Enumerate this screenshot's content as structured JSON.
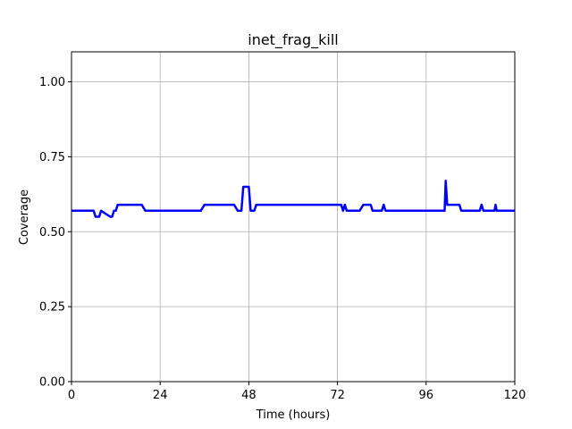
{
  "chart_data": {
    "type": "line",
    "title": "inet_frag_kill",
    "xlabel": "Time (hours)",
    "ylabel": "Coverage",
    "xlim": [
      0,
      120
    ],
    "ylim": [
      0,
      1.1
    ],
    "xticks": [
      0,
      24,
      48,
      72,
      96,
      120
    ],
    "xtick_labels": [
      "0",
      "24",
      "48",
      "72",
      "96",
      "120"
    ],
    "yticks": [
      0.0,
      0.25,
      0.5,
      0.75,
      1.0
    ],
    "ytick_labels": [
      "0.00",
      "0.25",
      "0.50",
      "0.75",
      "1.00"
    ],
    "grid": true,
    "series": [
      {
        "color": "#0000ff",
        "x": [
          0,
          6,
          6.5,
          7.5,
          8,
          10.5,
          11,
          11.5,
          12,
          12.5,
          19,
          20,
          35,
          36,
          44,
          45,
          46,
          46.5,
          48,
          48.5,
          49.5,
          50,
          73,
          73.5,
          74,
          74.5,
          75,
          78,
          79,
          81,
          81.5,
          84,
          84.5,
          85,
          101,
          101.3,
          101.7,
          102,
          105,
          105.5,
          110.5,
          111,
          111.5,
          114.5,
          114.8,
          115.1,
          120
        ],
        "y": [
          0.57,
          0.57,
          0.55,
          0.55,
          0.57,
          0.55,
          0.55,
          0.57,
          0.57,
          0.59,
          0.59,
          0.57,
          0.57,
          0.59,
          0.59,
          0.57,
          0.57,
          0.65,
          0.65,
          0.57,
          0.57,
          0.59,
          0.59,
          0.57,
          0.59,
          0.57,
          0.57,
          0.57,
          0.59,
          0.59,
          0.57,
          0.57,
          0.59,
          0.57,
          0.57,
          0.67,
          0.59,
          0.59,
          0.59,
          0.57,
          0.57,
          0.59,
          0.57,
          0.57,
          0.59,
          0.57,
          0.57
        ]
      }
    ]
  }
}
